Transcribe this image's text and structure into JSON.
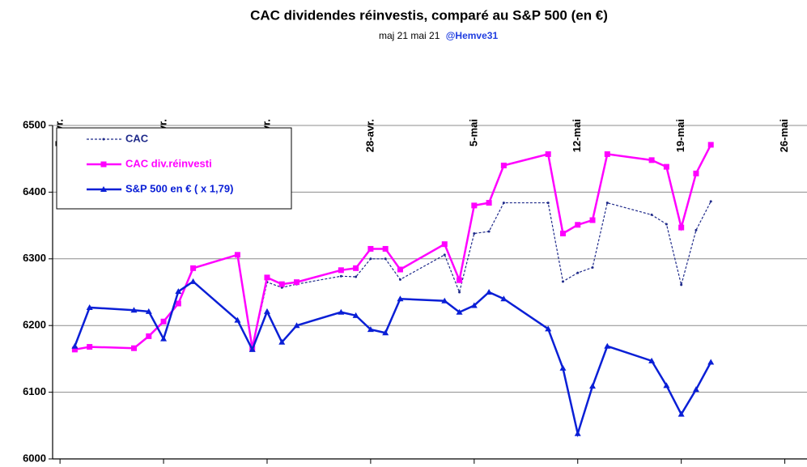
{
  "chart_data": {
    "type": "line",
    "title": "CAC dividendes réinvestis, comparé au  S&P 500 (en €)",
    "subtitle": "maj 21 mai 21",
    "subtitle_handle": "@Hemve31",
    "x": [
      "2021-04-08",
      "2021-04-09",
      "2021-04-12",
      "2021-04-13",
      "2021-04-14",
      "2021-04-15",
      "2021-04-16",
      "2021-04-19",
      "2021-04-20",
      "2021-04-21",
      "2021-04-22",
      "2021-04-23",
      "2021-04-26",
      "2021-04-27",
      "2021-04-28",
      "2021-04-29",
      "2021-04-30",
      "2021-05-03",
      "2021-05-04",
      "2021-05-05",
      "2021-05-06",
      "2021-05-07",
      "2021-05-10",
      "2021-05-11",
      "2021-05-12",
      "2021-05-13",
      "2021-05-14",
      "2021-05-17",
      "2021-05-18",
      "2021-05-19",
      "2021-05-20",
      "2021-05-21"
    ],
    "series": [
      {
        "name": "CAC",
        "color": "#1f2a8a",
        "dash": true,
        "marker": "dot",
        "values": [
          6164,
          6168,
          6166,
          6184,
          6206,
          6233,
          6286,
          6306,
          6166,
          6265,
          6257,
          6262,
          6274,
          6273,
          6300,
          6300,
          6269,
          6306,
          6250,
          6338,
          6341,
          6384,
          6384,
          6266,
          6279,
          6287,
          6384,
          6366,
          6352,
          6261,
          6343,
          6386
        ]
      },
      {
        "name": "CAC div.réinvesti",
        "color": "#ff00ff",
        "dash": false,
        "marker": "square",
        "values": [
          6164,
          6168,
          6166,
          6184,
          6206,
          6233,
          6286,
          6306,
          6166,
          6272,
          6262,
          6265,
          6283,
          6286,
          6315,
          6315,
          6284,
          6322,
          6268,
          6380,
          6384,
          6440,
          6457,
          6338,
          6351,
          6358,
          6457,
          6448,
          6438,
          6347,
          6428,
          6471
        ]
      },
      {
        "name": "S&P 500 en € ( x 1,79)",
        "color": "#0a1fd6",
        "dash": false,
        "marker": "triangle",
        "values": [
          6169,
          6227,
          6223,
          6221,
          6180,
          6251,
          6266,
          6208,
          6164,
          6221,
          6175,
          6200,
          6220,
          6215,
          6194,
          6189,
          6240,
          6237,
          6220,
          6230,
          6250,
          6240,
          6195,
          6136,
          6038,
          6109,
          6169,
          6147,
          6110,
          6067,
          6104,
          6145
        ]
      }
    ],
    "xlim": [
      "2021-04-06T12:00Z",
      "2021-05-27T12:00Z"
    ],
    "xticks": [
      {
        "value": "2021-04-07",
        "label": "7-avr."
      },
      {
        "value": "2021-04-14",
        "label": "14-avr."
      },
      {
        "value": "2021-04-21",
        "label": "21-avr."
      },
      {
        "value": "2021-04-28",
        "label": "28-avr."
      },
      {
        "value": "2021-05-05",
        "label": "5-mai"
      },
      {
        "value": "2021-05-12",
        "label": "12-mai"
      },
      {
        "value": "2021-05-19",
        "label": "19-mai"
      },
      {
        "value": "2021-05-26",
        "label": "26-mai"
      }
    ],
    "ylim": [
      6000,
      6500
    ],
    "yticks": [
      6000,
      6100,
      6200,
      6300,
      6400,
      6500
    ],
    "grid": true,
    "legend": "top-left"
  }
}
